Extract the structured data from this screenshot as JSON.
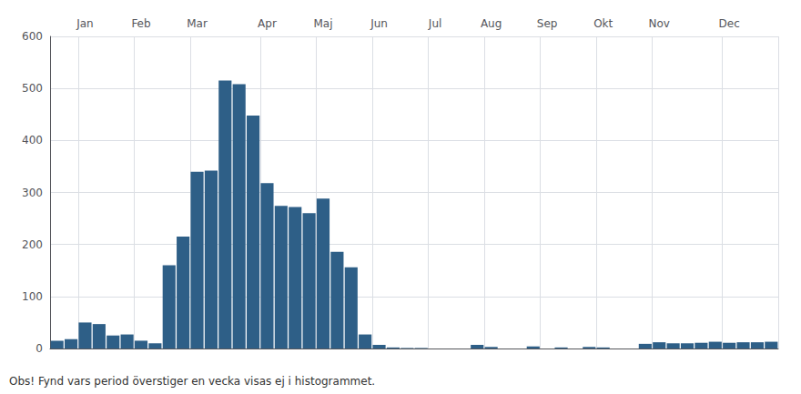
{
  "chart_data": {
    "type": "bar",
    "categories": [
      null,
      null,
      "Jan",
      null,
      null,
      null,
      "Feb",
      null,
      null,
      null,
      "Mar",
      null,
      null,
      null,
      null,
      "Apr",
      null,
      null,
      null,
      "Maj",
      null,
      null,
      null,
      "Jun",
      null,
      null,
      null,
      "Jul",
      null,
      null,
      null,
      "Aug",
      null,
      null,
      null,
      "Sep",
      null,
      null,
      null,
      "Okt",
      null,
      null,
      null,
      "Nov",
      null,
      null,
      null,
      null,
      "Dec",
      null,
      null,
      null
    ],
    "values": [
      15,
      18,
      50,
      47,
      25,
      27,
      15,
      10,
      160,
      215,
      340,
      342,
      515,
      508,
      448,
      318,
      274,
      272,
      260,
      288,
      186,
      156,
      27,
      7,
      2,
      1,
      1,
      0,
      0,
      0,
      7,
      3,
      0,
      0,
      4,
      0,
      2,
      0,
      3,
      2,
      0,
      0,
      9,
      12,
      10,
      10,
      11,
      13,
      11,
      12,
      12,
      13
    ],
    "color": "#2e5f87",
    "ylim": [
      0,
      600
    ],
    "yticks": [
      0,
      100,
      200,
      300,
      400,
      500,
      600
    ],
    "grid": true,
    "annotations": [
      "Obs! Fynd vars period överstiger en vecka visas ej i histogrammet."
    ]
  }
}
